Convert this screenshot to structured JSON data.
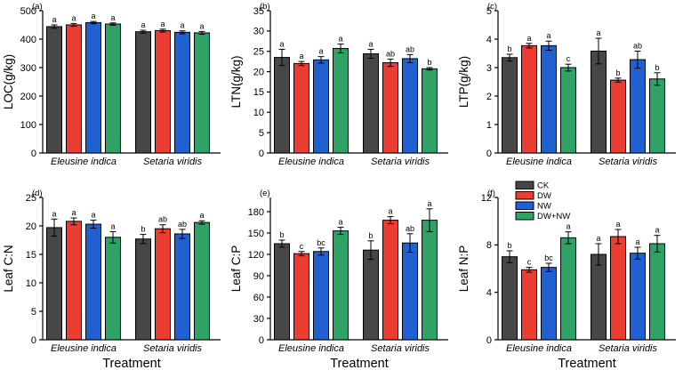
{
  "figure": {
    "background": "#ffffff",
    "treatments": [
      "CK",
      "DW",
      "NW",
      "DW+NW"
    ],
    "series_colors": [
      "#474747",
      "#ed3c32",
      "#2160d3",
      "#2fa365"
    ],
    "axis_color": "#000000",
    "legend": {
      "labels": [
        "CK",
        "DW",
        "NW",
        "DW+NW"
      ],
      "location_panel": "f",
      "position": "top-left-inside"
    }
  },
  "chart_data": [
    {
      "id": "a",
      "panel_label": "(a)",
      "type": "bar",
      "ylabel": "LOC(g/kg)",
      "xlabel": "",
      "ylim": [
        0,
        500
      ],
      "yticks": [
        0,
        100,
        200,
        300,
        400,
        500
      ],
      "grid": false,
      "categories": [
        "Eleusine indica",
        "Setaria viridis"
      ],
      "series": [
        {
          "name": "CK",
          "values": [
            444,
            426
          ],
          "errors": [
            6,
            5
          ],
          "letters": [
            "a",
            "a"
          ]
        },
        {
          "name": "DW",
          "values": [
            450,
            430
          ],
          "errors": [
            5,
            5
          ],
          "letters": [
            "a",
            "a"
          ]
        },
        {
          "name": "NW",
          "values": [
            458,
            424
          ],
          "errors": [
            4,
            5
          ],
          "letters": [
            "a",
            "a"
          ]
        },
        {
          "name": "DW+NW",
          "values": [
            453,
            422
          ],
          "errors": [
            4,
            5
          ],
          "letters": [
            "a",
            "a"
          ]
        }
      ]
    },
    {
      "id": "b",
      "panel_label": "(b)",
      "type": "bar",
      "ylabel": "LTN(g/kg)",
      "xlabel": "",
      "ylim": [
        0,
        35
      ],
      "yticks": [
        0,
        5,
        10,
        15,
        20,
        25,
        30,
        35
      ],
      "grid": false,
      "categories": [
        "Eleusine indica",
        "Setaria viridis"
      ],
      "series": [
        {
          "name": "CK",
          "values": [
            23.5,
            24.4
          ],
          "errors": [
            2.0,
            1.1
          ],
          "letters": [
            "a",
            "a"
          ]
        },
        {
          "name": "DW",
          "values": [
            22.0,
            22.2
          ],
          "errors": [
            0.5,
            0.9
          ],
          "letters": [
            "a",
            "ab"
          ]
        },
        {
          "name": "NW",
          "values": [
            22.9,
            23.2
          ],
          "errors": [
            0.8,
            1.0
          ],
          "letters": [
            "a",
            "ab"
          ]
        },
        {
          "name": "DW+NW",
          "values": [
            25.7,
            20.7
          ],
          "errors": [
            1.1,
            0.3
          ],
          "letters": [
            "a",
            "b"
          ]
        }
      ]
    },
    {
      "id": "c",
      "panel_label": "(c)",
      "type": "bar",
      "ylabel": "LTP(g/kg)",
      "xlabel": "",
      "ylim": [
        0,
        5
      ],
      "yticks": [
        0,
        1,
        2,
        3,
        4,
        5
      ],
      "grid": false,
      "categories": [
        "Eleusine indica",
        "Setaria viridis"
      ],
      "series": [
        {
          "name": "CK",
          "values": [
            3.35,
            3.58
          ],
          "errors": [
            0.12,
            0.45
          ],
          "letters": [
            "b",
            "a"
          ]
        },
        {
          "name": "DW",
          "values": [
            3.77,
            2.56
          ],
          "errors": [
            0.08,
            0.07
          ],
          "letters": [
            "a",
            "b"
          ]
        },
        {
          "name": "NW",
          "values": [
            3.77,
            3.28
          ],
          "errors": [
            0.16,
            0.3
          ],
          "letters": [
            "a",
            "ab"
          ]
        },
        {
          "name": "DW+NW",
          "values": [
            3.0,
            2.6
          ],
          "errors": [
            0.12,
            0.22
          ],
          "letters": [
            "c",
            "b"
          ]
        }
      ]
    },
    {
      "id": "d",
      "panel_label": "(d)",
      "type": "bar",
      "ylabel": "Leaf C:N",
      "xlabel": "Treatment",
      "ylim": [
        0,
        25
      ],
      "yticks": [
        0,
        5,
        10,
        15,
        20,
        25
      ],
      "grid": false,
      "categories": [
        "Eleusine indica",
        "Setaria viridis"
      ],
      "series": [
        {
          "name": "CK",
          "values": [
            19.7,
            17.7
          ],
          "errors": [
            1.5,
            0.8
          ],
          "letters": [
            "a",
            "b"
          ]
        },
        {
          "name": "DW",
          "values": [
            20.8,
            19.5
          ],
          "errors": [
            0.6,
            0.7
          ],
          "letters": [
            "a",
            "ab"
          ]
        },
        {
          "name": "NW",
          "values": [
            20.3,
            18.6
          ],
          "errors": [
            0.7,
            0.8
          ],
          "letters": [
            "a",
            "ab"
          ]
        },
        {
          "name": "DW+NW",
          "values": [
            18.0,
            20.6
          ],
          "errors": [
            1.0,
            0.3
          ],
          "letters": [
            "a",
            "a"
          ]
        }
      ]
    },
    {
      "id": "e",
      "panel_label": "(e)",
      "type": "bar",
      "ylabel": "Leaf C:P",
      "xlabel": "Treatment",
      "ylim": [
        0,
        200
      ],
      "yticks": [
        0,
        30,
        60,
        90,
        120,
        150,
        180
      ],
      "grid": false,
      "categories": [
        "Eleusine indica",
        "Setaria viridis"
      ],
      "series": [
        {
          "name": "CK",
          "values": [
            135,
            126
          ],
          "errors": [
            5,
            13
          ],
          "letters": [
            "b",
            "b"
          ]
        },
        {
          "name": "DW",
          "values": [
            121,
            168
          ],
          "errors": [
            3,
            5
          ],
          "letters": [
            "c",
            "a"
          ]
        },
        {
          "name": "NW",
          "values": [
            124,
            136
          ],
          "errors": [
            5,
            13
          ],
          "letters": [
            "bc",
            "ab"
          ]
        },
        {
          "name": "DW+NW",
          "values": [
            153,
            168
          ],
          "errors": [
            5,
            16
          ],
          "letters": [
            "a",
            "a"
          ]
        }
      ]
    },
    {
      "id": "f",
      "panel_label": "(f)",
      "type": "bar",
      "ylabel": "Leaf N:P",
      "xlabel": "Treatment",
      "ylim": [
        0,
        12
      ],
      "yticks": [
        0,
        4,
        8,
        12
      ],
      "grid": false,
      "has_legend": true,
      "categories": [
        "Eleusine indica",
        "Setaria viridis"
      ],
      "series": [
        {
          "name": "CK",
          "values": [
            7.0,
            7.2
          ],
          "errors": [
            0.5,
            0.9
          ],
          "letters": [
            "b",
            "a"
          ]
        },
        {
          "name": "DW",
          "values": [
            5.9,
            8.7
          ],
          "errors": [
            0.2,
            0.6
          ],
          "letters": [
            "c",
            "a"
          ]
        },
        {
          "name": "NW",
          "values": [
            6.1,
            7.3
          ],
          "errors": [
            0.35,
            0.5
          ],
          "letters": [
            "bc",
            "a"
          ]
        },
        {
          "name": "DW+NW",
          "values": [
            8.6,
            8.1
          ],
          "errors": [
            0.5,
            0.7
          ],
          "letters": [
            "a",
            "a"
          ]
        }
      ]
    }
  ]
}
